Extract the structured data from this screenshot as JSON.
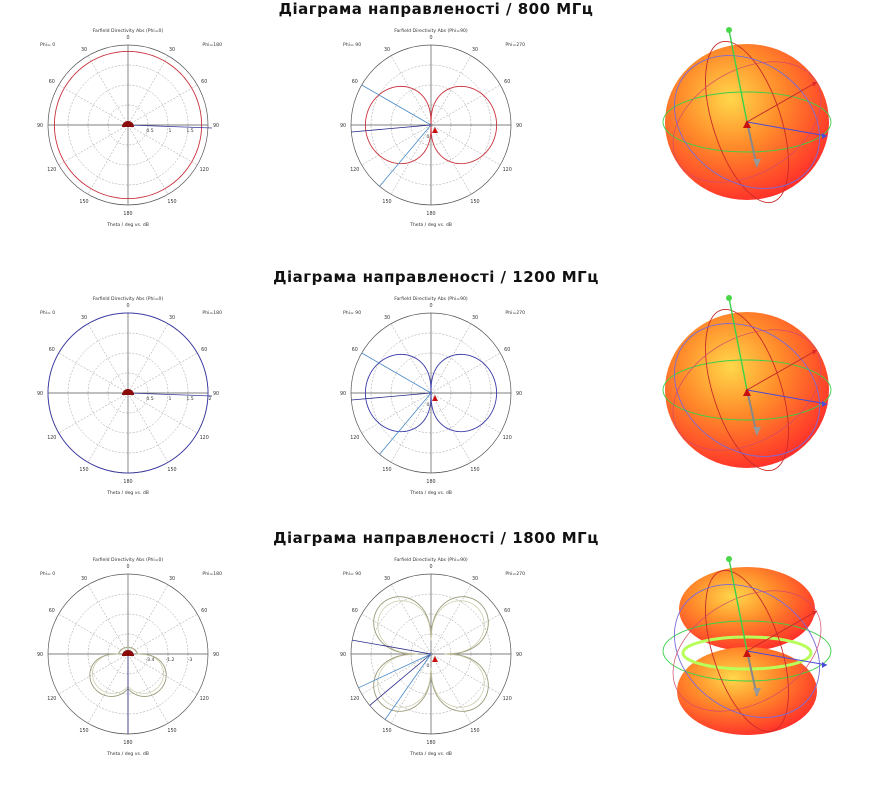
{
  "sections": [
    {
      "title": "Діаграма направленості / 800 МГц",
      "polar": [
        {
          "plot_title": "Farfield Directivity Abs (Phi=0)",
          "phi_left": "Phi= 0",
          "phi_right": "Phi=180",
          "footer": "Theta / deg vs. dB",
          "angles": [
            "0",
            "30",
            "60",
            "90",
            "120",
            "150",
            "180",
            "150",
            "120",
            "90",
            "60",
            "30"
          ],
          "radial_labels": [
            "0.5",
            "1",
            "1.5"
          ]
        },
        {
          "plot_title": "Farfield Directivity Abs (Phi=90)",
          "phi_left": "Phi= 90",
          "phi_right": "Phi=270",
          "footer": "Theta / deg vs. dB",
          "angles": [
            "0",
            "30",
            "60",
            "90",
            "120",
            "150",
            "180",
            "150",
            "120",
            "90",
            "60",
            "30"
          ],
          "radial_labels": [
            "0"
          ]
        }
      ]
    },
    {
      "title": "Діаграма направленості / 1200 МГц",
      "polar": [
        {
          "plot_title": "Farfield Directivity Abs (Phi=0)",
          "phi_left": "Phi= 0",
          "phi_right": "Phi=180",
          "footer": "Theta / deg vs. dB",
          "angles": [
            "0",
            "30",
            "60",
            "90",
            "120",
            "150",
            "180",
            "150",
            "120",
            "90",
            "60",
            "30"
          ],
          "radial_labels": [
            "0.5",
            "1",
            "1.5",
            "2"
          ]
        },
        {
          "plot_title": "Farfield Directivity Abs (Phi=90)",
          "phi_left": "Phi= 90",
          "phi_right": "Phi=270",
          "footer": "Theta / deg vs. dB",
          "angles": [
            "0",
            "30",
            "60",
            "90",
            "120",
            "150",
            "180",
            "150",
            "120",
            "90",
            "60",
            "30"
          ],
          "radial_labels": [
            "0"
          ]
        }
      ]
    },
    {
      "title": "Діаграма направленості / 1800 МГц",
      "polar": [
        {
          "plot_title": "Farfield Directivity Abs (Phi=0)",
          "phi_left": "Phi= 0",
          "phi_right": "Phi=180",
          "footer": "Theta / deg vs. dB",
          "angles": [
            "0",
            "30",
            "60",
            "90",
            "120",
            "150",
            "180",
            "150",
            "120",
            "90",
            "60",
            "30"
          ],
          "radial_labels": [
            "-3.4",
            "-1.2",
            "-3"
          ]
        },
        {
          "plot_title": "Farfield Directivity Abs (Phi=90)",
          "phi_left": "Phi= 90",
          "phi_right": "Phi=270",
          "footer": "Theta / deg vs. dB",
          "angles": [
            "0",
            "30",
            "60",
            "90",
            "120",
            "150",
            "180",
            "150",
            "120",
            "90",
            "60",
            "30"
          ],
          "radial_labels": [
            "0"
          ]
        }
      ]
    }
  ],
  "chart_data": [
    {
      "type": "polar",
      "title": "Farfield Directivity Abs (Phi=0)",
      "frequency": "800 МГц",
      "pattern": "omni",
      "series_color": "#c8323c",
      "max_dB": 1.5,
      "value_dB": 1.4
    },
    {
      "type": "polar",
      "title": "Farfield Directivity Abs (Phi=90)",
      "frequency": "800 МГц",
      "pattern": "figure-eight",
      "series_color": "#c8323c"
    },
    {
      "type": "polar",
      "title": "Farfield Directivity Abs (Phi=0)",
      "frequency": "1200 МГц",
      "pattern": "omni",
      "series_color": "#3a3aa8",
      "max_dB": 2,
      "value_dB": 2
    },
    {
      "type": "polar",
      "title": "Farfield Directivity Abs (Phi=90)",
      "frequency": "1200 МГц",
      "pattern": "figure-eight",
      "series_color": "#3a3aa8"
    },
    {
      "type": "polar",
      "title": "Farfield Directivity Abs (Phi=0)",
      "frequency": "1800 МГц",
      "pattern": "lobe-down",
      "series_color": "#9a9a7a"
    },
    {
      "type": "polar",
      "title": "Farfield Directivity Abs (Phi=90)",
      "frequency": "1800 МГц",
      "pattern": "four-lobe",
      "series_color": "#9a9a7a"
    }
  ],
  "colors": {
    "accent_red": "#d6303a",
    "accent_blue": "#3a3aa8",
    "accent_olive": "#9a9a7a",
    "sphere_red": "#ff3a3a",
    "sphere_orange": "#ffb000"
  }
}
